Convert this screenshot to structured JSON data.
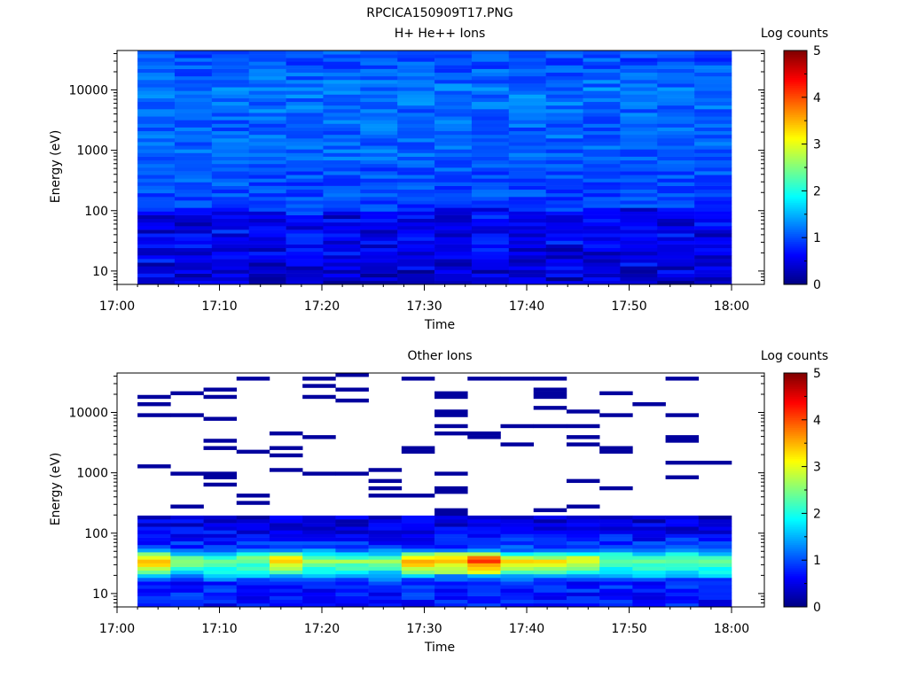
{
  "page_title": "RPCICA150909T17.PNG",
  "chart_data": [
    {
      "type": "heatmap",
      "title": "H+ He++ Ions",
      "xlabel": "Time",
      "ylabel": "Energy (eV)",
      "x_ticks": [
        "17:00",
        "17:10",
        "17:20",
        "17:30",
        "17:40",
        "17:50",
        "18:00"
      ],
      "y_ticks": [
        "10",
        "100",
        "1000",
        "10000"
      ],
      "y_scale": "log",
      "x_range": [
        "17:00",
        "18:00"
      ],
      "y_range": [
        6,
        45000
      ],
      "colorbar": {
        "label": "Log counts",
        "ticks": [
          "0",
          "1",
          "2",
          "3",
          "4",
          "5"
        ],
        "range": [
          0,
          5
        ]
      },
      "data_time_range": [
        "17:02",
        "18:00"
      ],
      "time_bins": 16,
      "energy_bins": 64,
      "description_of_values": "Log counts mostly ~0.7–1.3 across all times and energies; lowest energies (below ~100 eV) show mixed darker (~0.2–0.6) bins.",
      "value_profile": {
        "energy_eV": [
          8,
          15,
          30,
          60,
          100,
          300,
          1000,
          3000,
          10000,
          30000
        ],
        "typical_log_counts": [
          0.6,
          0.7,
          0.8,
          0.7,
          0.9,
          1.0,
          1.1,
          1.1,
          1.2,
          1.0
        ]
      }
    },
    {
      "type": "heatmap",
      "title": "Other Ions",
      "xlabel": "Time",
      "ylabel": "Energy (eV)",
      "x_ticks": [
        "17:00",
        "17:10",
        "17:20",
        "17:30",
        "17:40",
        "17:50",
        "18:00"
      ],
      "y_ticks": [
        "10",
        "100",
        "1000",
        "10000"
      ],
      "y_scale": "log",
      "x_range": [
        "17:00",
        "18:00"
      ],
      "y_range": [
        6,
        45000
      ],
      "colorbar": {
        "label": "Log counts",
        "ticks": [
          "0",
          "1",
          "2",
          "3",
          "4",
          "5"
        ],
        "range": [
          0,
          5
        ]
      },
      "data_time_range": [
        "17:02",
        "18:00"
      ],
      "time_bins": 18,
      "energy_bins": 64,
      "description_of_values": "Dense counts below ~200 eV; enhanced band at ~25–45 eV reaching log counts ~3–3.5 near 17:03, 17:20 and 17:33; sparse single counts (~0.2) above 200 eV.",
      "value_profile": {
        "energy_eV": [
          8,
          15,
          25,
          35,
          45,
          60,
          100,
          180,
          1000,
          10000
        ],
        "typical_log_counts": [
          0.7,
          0.8,
          2.0,
          2.6,
          1.8,
          0.9,
          0.6,
          0.4,
          0.2,
          0.2
        ]
      }
    }
  ]
}
